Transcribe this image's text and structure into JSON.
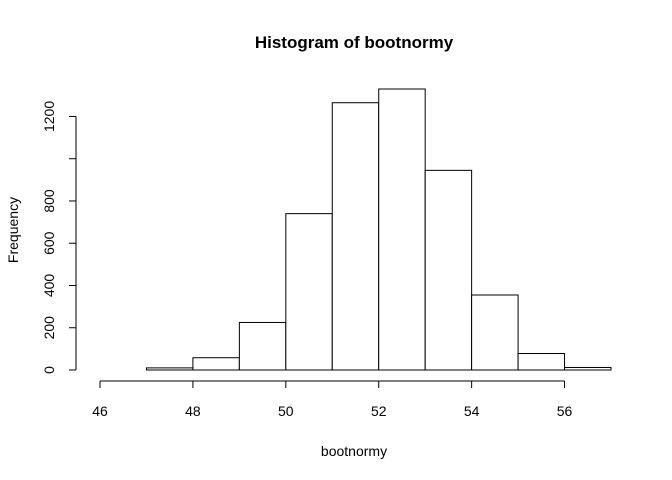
{
  "chart_data": {
    "type": "bar",
    "title": "Histogram of bootnormy",
    "xlabel": "bootnormy",
    "ylabel": "Frequency",
    "bin_edges": [
      46,
      47,
      48,
      49,
      50,
      51,
      52,
      53,
      54,
      55,
      56,
      57
    ],
    "values": [
      0,
      10,
      58,
      225,
      740,
      1265,
      1330,
      945,
      355,
      78,
      12
    ],
    "xlim": [
      46,
      57
    ],
    "ylim": [
      0,
      1330
    ],
    "x_ticks": [
      46,
      48,
      50,
      52,
      54,
      56
    ],
    "y_ticks": [
      0,
      200,
      400,
      600,
      800,
      1000,
      1200
    ],
    "x_tick_labels": [
      "46",
      "48",
      "50",
      "52",
      "54",
      "56"
    ],
    "y_tick_labels": [
      "0",
      "200",
      "400",
      "600",
      "800",
      "",
      "1200"
    ],
    "grid": false,
    "bar_fill": "#ffffff",
    "bar_stroke": "#000000"
  }
}
